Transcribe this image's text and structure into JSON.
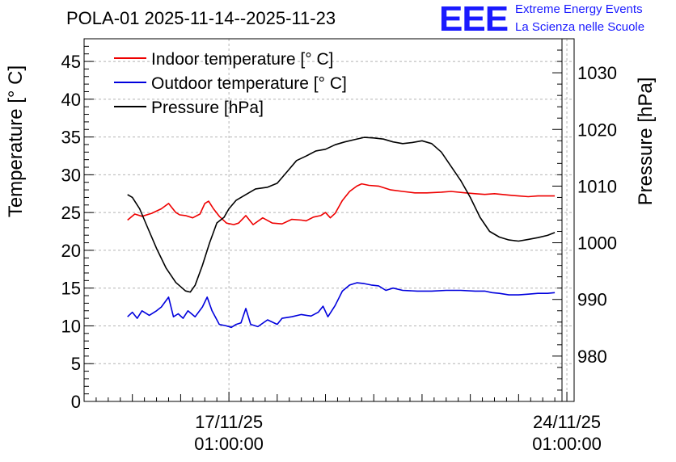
{
  "title": "POLA-01 2025-11-14--2025-11-23",
  "logo": {
    "text": "EEE",
    "line1": "Extreme Energy Events",
    "line2": "La Scienza nelle Scuole"
  },
  "colors": {
    "indoor": "#ee0000",
    "outdoor": "#0000dd",
    "pressure": "#000000",
    "grid": "#b4b4b4",
    "brand": "#1a1aff"
  },
  "chart_data": {
    "type": "line",
    "title": "POLA-01 2025-11-14--2025-11-23",
    "xlabel": "",
    "ylabel": "Temperature [° C]",
    "y2label": "Pressure [hPa]",
    "xlim": [
      0,
      10.15
    ],
    "ylim": [
      0,
      48
    ],
    "y2lim": [
      972,
      1036
    ],
    "x_unit": "days since 2025-11-14 01:00:00",
    "xticks": [
      {
        "value": 3,
        "line1": "17/11/25",
        "line2": "01:00:00"
      },
      {
        "value": 10,
        "line1": "24/11/25",
        "line2": "01:00:00"
      }
    ],
    "yticks": [
      0,
      5,
      10,
      15,
      20,
      25,
      30,
      35,
      40,
      45
    ],
    "y2ticks": [
      980,
      990,
      1000,
      1010,
      1020,
      1030
    ],
    "grid": true,
    "legend_position": "top-left",
    "series": [
      {
        "name": "Indoor temperature [° C]",
        "axis": "left",
        "color": "#ee0000",
        "x": [
          0.9,
          1.05,
          1.2,
          1.4,
          1.6,
          1.75,
          1.9,
          1.98,
          2.1,
          2.25,
          2.4,
          2.5,
          2.58,
          2.68,
          2.8,
          2.95,
          3.1,
          3.2,
          3.35,
          3.5,
          3.7,
          3.9,
          4.1,
          4.3,
          4.5,
          4.6,
          4.75,
          4.9,
          5.0,
          5.1,
          5.2,
          5.35,
          5.5,
          5.65,
          5.75,
          5.9,
          6.1,
          6.35,
          6.6,
          6.85,
          7.1,
          7.4,
          7.6,
          7.9,
          8.1,
          8.3,
          8.5,
          8.8,
          9.0,
          9.2,
          9.4,
          9.6,
          9.75
        ],
        "y": [
          24.0,
          24.8,
          24.5,
          24.9,
          25.5,
          26.2,
          25.0,
          24.7,
          24.6,
          24.3,
          24.8,
          26.2,
          26.5,
          25.5,
          24.5,
          23.6,
          23.4,
          23.6,
          24.6,
          23.4,
          24.3,
          23.6,
          23.5,
          24.1,
          24.0,
          23.9,
          24.4,
          24.6,
          25.0,
          24.3,
          24.9,
          26.6,
          27.8,
          28.5,
          28.8,
          28.6,
          28.5,
          28.0,
          27.8,
          27.6,
          27.6,
          27.7,
          27.8,
          27.6,
          27.5,
          27.4,
          27.5,
          27.3,
          27.2,
          27.1,
          27.2,
          27.2,
          27.2
        ]
      },
      {
        "name": "Outdoor temperature [° C]",
        "axis": "left",
        "color": "#0000dd",
        "x": [
          0.9,
          1.0,
          1.1,
          1.2,
          1.35,
          1.5,
          1.6,
          1.75,
          1.85,
          1.95,
          2.05,
          2.15,
          2.3,
          2.45,
          2.55,
          2.65,
          2.8,
          2.95,
          3.05,
          3.15,
          3.25,
          3.35,
          3.45,
          3.6,
          3.8,
          4.0,
          4.1,
          4.3,
          4.5,
          4.7,
          4.85,
          4.95,
          5.05,
          5.2,
          5.35,
          5.5,
          5.65,
          5.8,
          5.95,
          6.1,
          6.25,
          6.4,
          6.6,
          6.9,
          7.2,
          7.5,
          7.8,
          8.1,
          8.3,
          8.45,
          8.6,
          8.8,
          9.0,
          9.2,
          9.4,
          9.6,
          9.75
        ],
        "y": [
          11.2,
          11.8,
          11.0,
          12.0,
          11.4,
          12.0,
          12.5,
          13.8,
          11.2,
          11.6,
          11.0,
          12.0,
          11.2,
          12.5,
          13.8,
          12.0,
          10.2,
          10.0,
          9.8,
          10.2,
          10.4,
          12.3,
          10.2,
          9.9,
          10.8,
          10.2,
          11.0,
          11.2,
          11.5,
          11.3,
          11.8,
          12.6,
          11.2,
          12.7,
          14.6,
          15.4,
          15.7,
          15.6,
          15.4,
          15.3,
          14.7,
          15.0,
          14.7,
          14.6,
          14.6,
          14.7,
          14.7,
          14.6,
          14.6,
          14.4,
          14.3,
          14.1,
          14.1,
          14.2,
          14.3,
          14.3,
          14.4
        ]
      },
      {
        "name": "Pressure [hPa]",
        "axis": "right",
        "color": "#000000",
        "x": [
          0.9,
          1.0,
          1.15,
          1.3,
          1.5,
          1.7,
          1.9,
          2.1,
          2.2,
          2.3,
          2.45,
          2.6,
          2.75,
          2.9,
          3.0,
          3.15,
          3.35,
          3.55,
          3.8,
          4.0,
          4.2,
          4.4,
          4.6,
          4.8,
          5.0,
          5.2,
          5.4,
          5.6,
          5.8,
          6.0,
          6.2,
          6.4,
          6.6,
          6.8,
          7.0,
          7.2,
          7.4,
          7.6,
          7.8,
          8.0,
          8.2,
          8.4,
          8.6,
          8.8,
          9.0,
          9.2,
          9.4,
          9.6,
          9.75
        ],
        "y": [
          1008.5,
          1008.0,
          1006.0,
          1003.0,
          999.0,
          995.5,
          993.0,
          991.5,
          991.3,
          992.5,
          996.0,
          1000.0,
          1003.5,
          1004.5,
          1006.0,
          1007.5,
          1008.5,
          1009.5,
          1009.8,
          1010.5,
          1012.5,
          1014.5,
          1015.3,
          1016.2,
          1016.5,
          1017.3,
          1017.8,
          1018.2,
          1018.6,
          1018.5,
          1018.3,
          1017.8,
          1017.5,
          1017.7,
          1018.0,
          1017.5,
          1016.0,
          1013.5,
          1011.0,
          1008.0,
          1004.5,
          1002.0,
          1001.0,
          1000.5,
          1000.3,
          1000.6,
          1000.9,
          1001.3,
          1001.8
        ]
      }
    ]
  }
}
